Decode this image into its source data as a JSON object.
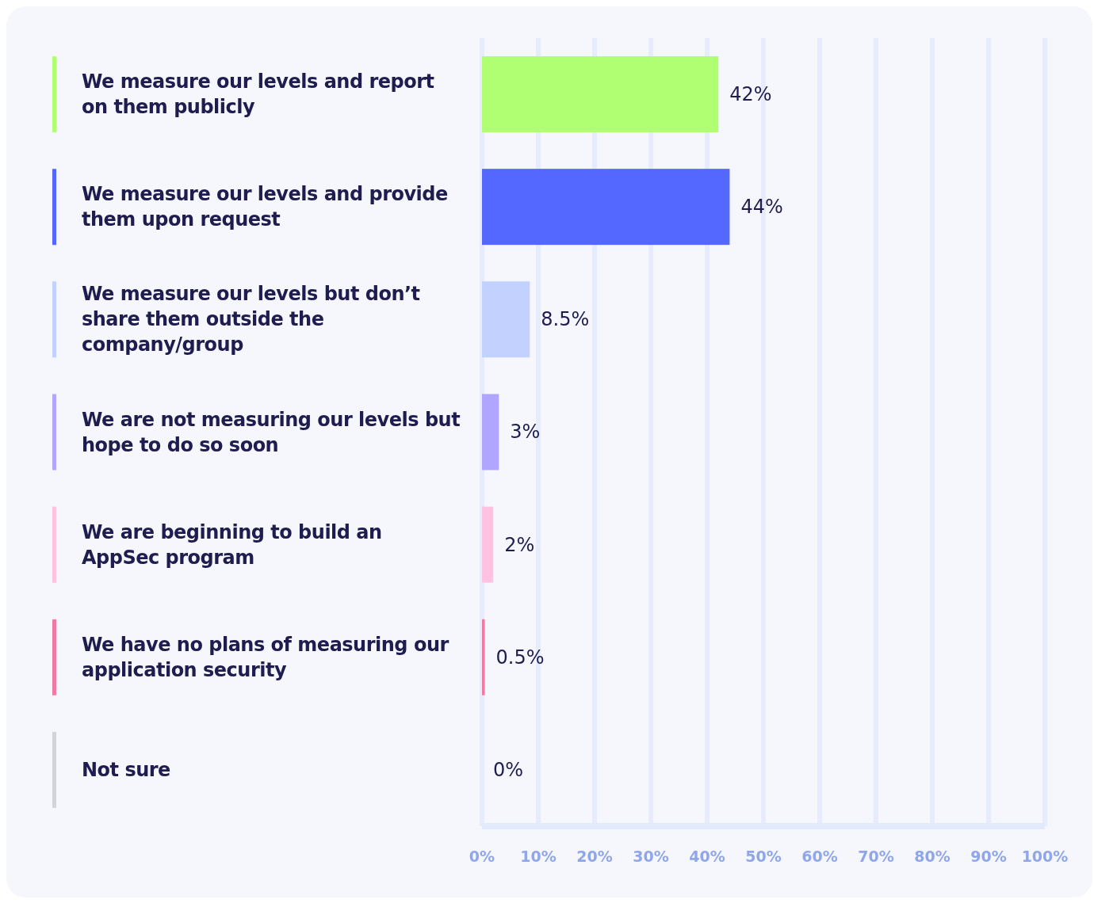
{
  "chart_data": {
    "type": "bar",
    "orientation": "horizontal",
    "categories": [
      "We measure our levels and report on them publicly",
      "We measure our levels and provide them upon request",
      "We measure our levels but don’t share them outside the company/group",
      "We are not measuring our levels but hope to do so soon",
      "We are beginning to build an AppSec program",
      "We have no plans of measuring our application security",
      "Not sure"
    ],
    "values": [
      42,
      44,
      8.5,
      3,
      2,
      0.5,
      0
    ],
    "value_labels": [
      "42%",
      "44%",
      "8.5%",
      "3%",
      "2%",
      "0.5%",
      "0%"
    ],
    "colors": [
      "#b0ff73",
      "#5468ff",
      "#c2d1ff",
      "#b0a6ff",
      "#ffc2e0",
      "#f07aa3",
      "#d4d4d8"
    ],
    "xlim": [
      0,
      100
    ],
    "xticks": [
      {
        "value": 0,
        "label": "0%"
      },
      {
        "value": 10,
        "label": "10%"
      },
      {
        "value": 20,
        "label": "20%"
      },
      {
        "value": 30,
        "label": "30%"
      },
      {
        "value": 40,
        "label": "40%"
      },
      {
        "value": 50,
        "label": "50%"
      },
      {
        "value": 60,
        "label": "60%"
      },
      {
        "value": 70,
        "label": "70%"
      },
      {
        "value": 80,
        "label": "80%"
      },
      {
        "value": 90,
        "label": "90%"
      },
      {
        "value": 100,
        "label": "100%"
      }
    ],
    "grid": "x"
  }
}
